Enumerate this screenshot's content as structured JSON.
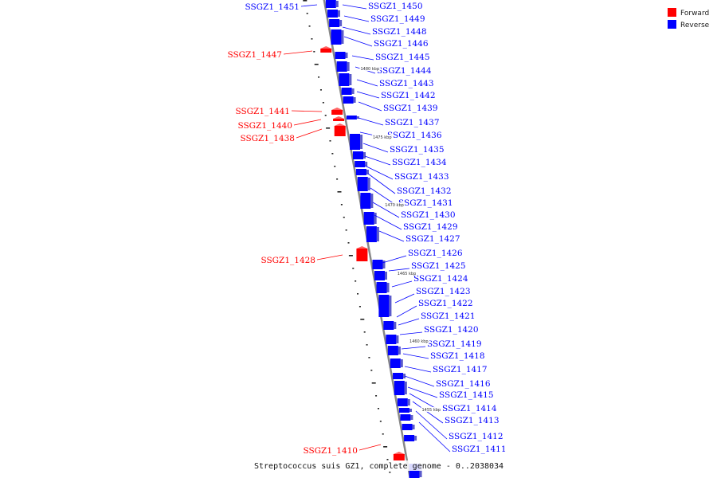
{
  "colors": {
    "forward": "#ff0000",
    "reverse": "#0000ff",
    "axis": "#888888"
  },
  "legend": {
    "forward": "Forward",
    "reverse": "Reverse"
  },
  "caption": "Streptococcus suis GZ1, complete genome - 0..2038034",
  "scale_ticks": [
    "1480 kbp",
    "1475 kbp",
    "1470 kbp",
    "1465 kbp",
    "1460 kbp",
    "1455 kbp"
  ],
  "reverse_genes": [
    "SSGZ1_1450",
    "SSGZ1_1449",
    "SSGZ1_1448",
    "SSGZ1_1446",
    "SSGZ1_1445",
    "SSGZ1_1444",
    "SSGZ1_1443",
    "SSGZ1_1442",
    "SSGZ1_1439",
    "SSGZ1_1437",
    "SSGZ1_1436",
    "SSGZ1_1435",
    "SSGZ1_1434",
    "SSGZ1_1433",
    "SSGZ1_1432",
    "SSGZ1_1431",
    "SSGZ1_1430",
    "SSGZ1_1429",
    "SSGZ1_1427",
    "SSGZ1_1426",
    "SSGZ1_1425",
    "SSGZ1_1424",
    "SSGZ1_1423",
    "SSGZ1_1422",
    "SSGZ1_1421",
    "SSGZ1_1420",
    "SSGZ1_1419",
    "SSGZ1_1418",
    "SSGZ1_1417",
    "SSGZ1_1416",
    "SSGZ1_1415",
    "SSGZ1_1414",
    "SSGZ1_1413",
    "SSGZ1_1412",
    "SSGZ1_1411"
  ],
  "left_reverse_genes": [
    "SSGZ1_1451"
  ],
  "forward_genes": [
    "SSGZ1_1447",
    "SSGZ1_1441",
    "SSGZ1_1440",
    "SSGZ1_1438",
    "SSGZ1_1428",
    "SSGZ1_1410"
  ]
}
